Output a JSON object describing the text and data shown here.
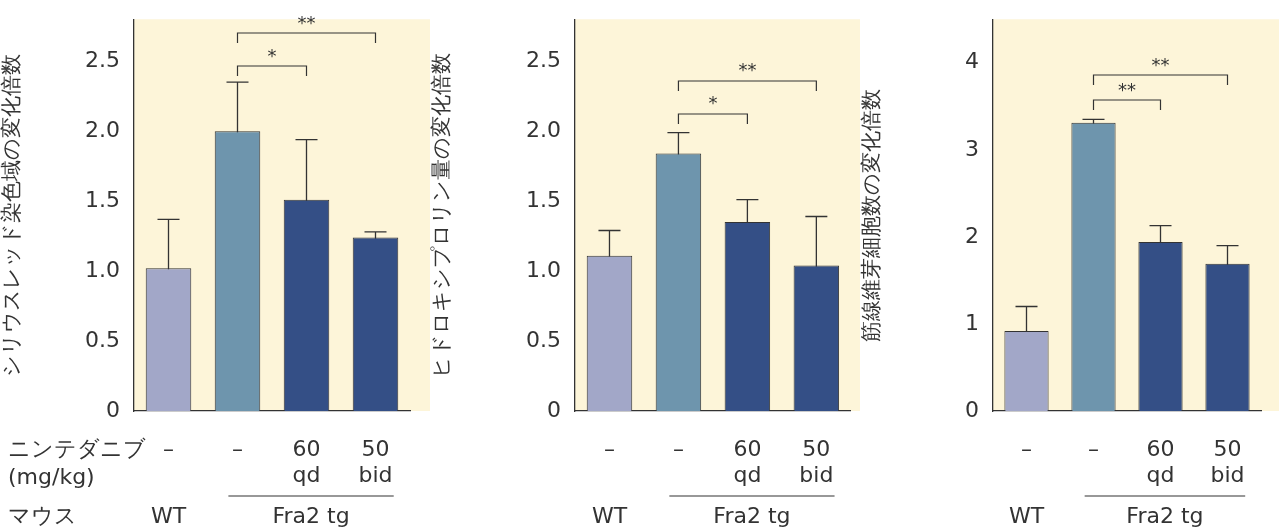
{
  "chart_data": [
    {
      "type": "bar",
      "ylabel": "シリウスレッド染色域の変化倍数",
      "categories": [
        "–",
        "–",
        "60 qd",
        "50 bid"
      ],
      "values": [
        1.02,
        2.0,
        1.51,
        1.24
      ],
      "errors": [
        0.35,
        0.35,
        0.43,
        0.04
      ],
      "colors": [
        "#a2a7c8",
        "#6e95ad",
        "#344f86",
        "#344f86"
      ],
      "ylim": [
        0,
        2.8
      ],
      "yticks": [
        0,
        {
          "value": 0.5,
          "label": "0.5"
        },
        {
          "value": 1,
          "label": "1.0"
        },
        {
          "value": 1.5,
          "label": "1.5"
        },
        {
          "value": 2,
          "label": "2.0"
        },
        {
          "value": 2.5,
          "label": "2.5"
        }
      ],
      "annotations": [
        "*",
        "**",
        "WT",
        "Fra2 tg",
        "ニンテダニブ",
        "(mg/kg)",
        "マウス"
      ]
    },
    {
      "type": "bar",
      "ylabel": "ヒドロキシプロリン量の変化倍数",
      "categories": [
        "–",
        "–",
        "60 qd",
        "50 bid"
      ],
      "values": [
        1.11,
        1.84,
        1.35,
        1.04
      ],
      "errors": [
        0.18,
        0.15,
        0.16,
        0.35
      ],
      "colors": [
        "#a2a7c8",
        "#6e95ad",
        "#344f86",
        "#344f86"
      ],
      "ylim": [
        0,
        2.8
      ],
      "yticks": [
        0,
        {
          "value": 0.5,
          "label": "0.5"
        },
        {
          "value": 1,
          "label": "1.0"
        },
        {
          "value": 1.5,
          "label": "1.5"
        },
        {
          "value": 2,
          "label": "2.0"
        },
        {
          "value": 2.5,
          "label": "2.5"
        }
      ],
      "annotations": [
        "*",
        "**",
        "WT",
        "Fra2 tg"
      ]
    },
    {
      "type": "bar",
      "ylabel": "筋線維芽細胞数の変化倍数",
      "categories": [
        "–",
        "–",
        "60 qd",
        "50 bid"
      ],
      "values": [
        0.92,
        3.31,
        1.94,
        1.69
      ],
      "errors": [
        0.28,
        0.04,
        0.19,
        0.21
      ],
      "colors": [
        "#a2a7c8",
        "#6e95ad",
        "#344f86",
        "#344f86"
      ],
      "ylim": [
        0,
        4.5
      ],
      "yticks": [
        0,
        1,
        2,
        3,
        4
      ],
      "annotations": [
        "**",
        "**",
        "WT",
        "Fra2 tg"
      ]
    }
  ]
}
